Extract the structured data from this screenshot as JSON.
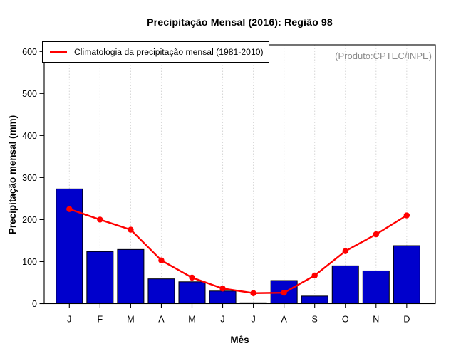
{
  "header": {
    "title": "Precipitação Mensal (2016): Região 98"
  },
  "legend": {
    "label": "Climatologia da precipitação mensal (1981-2010)"
  },
  "annotation": {
    "producer": "(Produto:CPTEC/INPE)",
    "color": "#8c8c8c"
  },
  "axes": {
    "x_label": "Mês",
    "y_label": "Precipitação mensal (mm)",
    "y_ticks": [
      "0",
      "100",
      "200",
      "300",
      "400",
      "500",
      "600"
    ]
  },
  "chart_data": {
    "type": "bar",
    "title": "Precipitação Mensal (2016): Região 98",
    "categories": [
      "J",
      "F",
      "M",
      "A",
      "M",
      "J",
      "J",
      "A",
      "S",
      "O",
      "N",
      "D"
    ],
    "series": [
      {
        "name": "Precipitação mensal 2016",
        "type": "bar",
        "color": "#0000cc",
        "values": [
          273,
          124,
          129,
          59,
          52,
          30,
          2,
          55,
          18,
          90,
          78,
          138
        ]
      },
      {
        "name": "Climatologia da precipitação mensal (1981-2010)",
        "type": "line",
        "color": "#ff0000",
        "values": [
          225,
          200,
          176,
          103,
          62,
          36,
          25,
          26,
          67,
          125,
          165,
          210
        ]
      }
    ],
    "xlabel": "Mês",
    "ylabel": "Precipitação mensal (mm)",
    "ylim": [
      0,
      600
    ],
    "grid": "vertical-dotted-per-month",
    "legend_position": "top-left",
    "bar_border_color": "#000000",
    "gridline_color": "#d6d6d6"
  }
}
